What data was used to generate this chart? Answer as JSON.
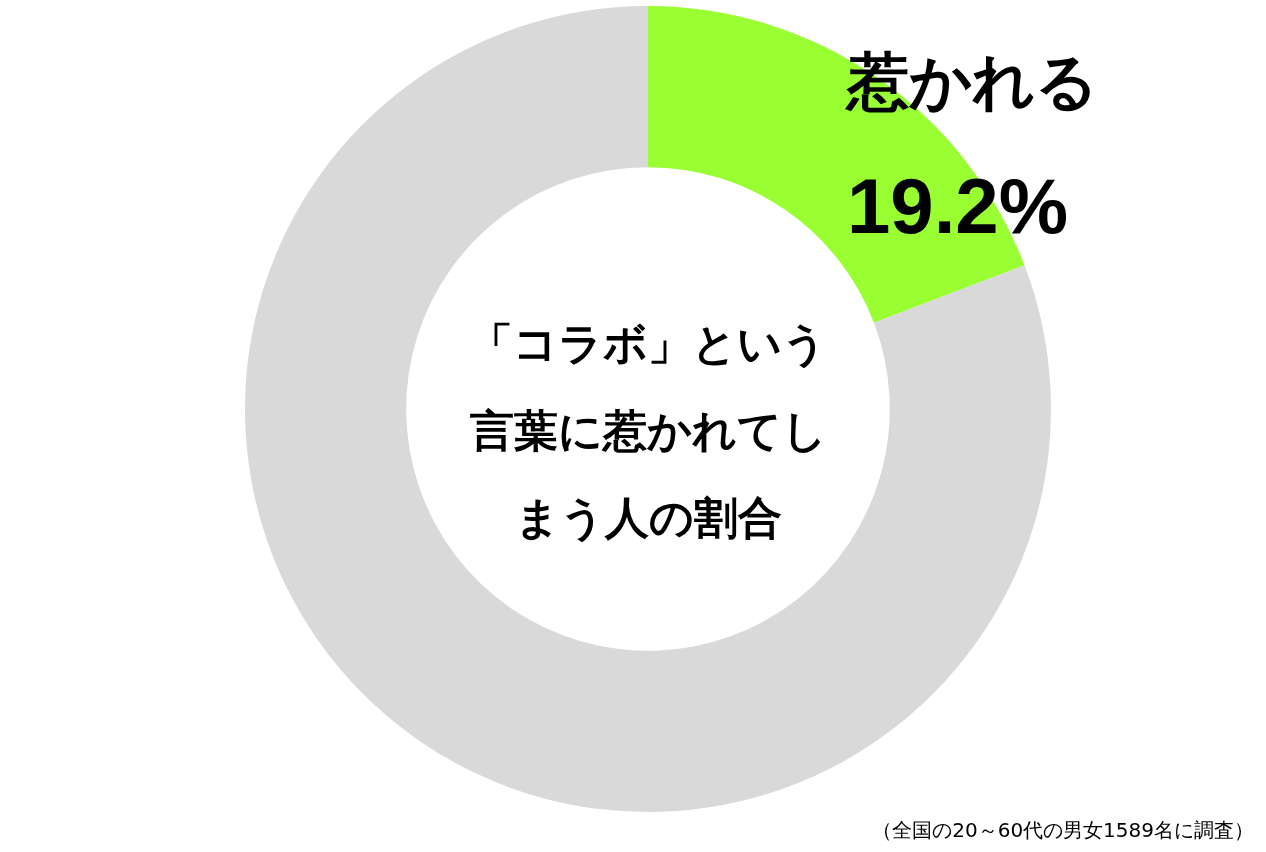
{
  "chart_data": {
    "type": "donut",
    "title": "「コラボ」という言葉に惹かれてしまう人の割合",
    "categories": [
      "惹かれる",
      null
    ],
    "values": [
      19.2,
      80.8
    ],
    "colors": [
      "#99ff33",
      "#d9d9d9"
    ],
    "value_labels": [
      "19.2%",
      null
    ],
    "annotations": [
      "（全国の20～60代の男女1589名に調査）"
    ]
  }
}
